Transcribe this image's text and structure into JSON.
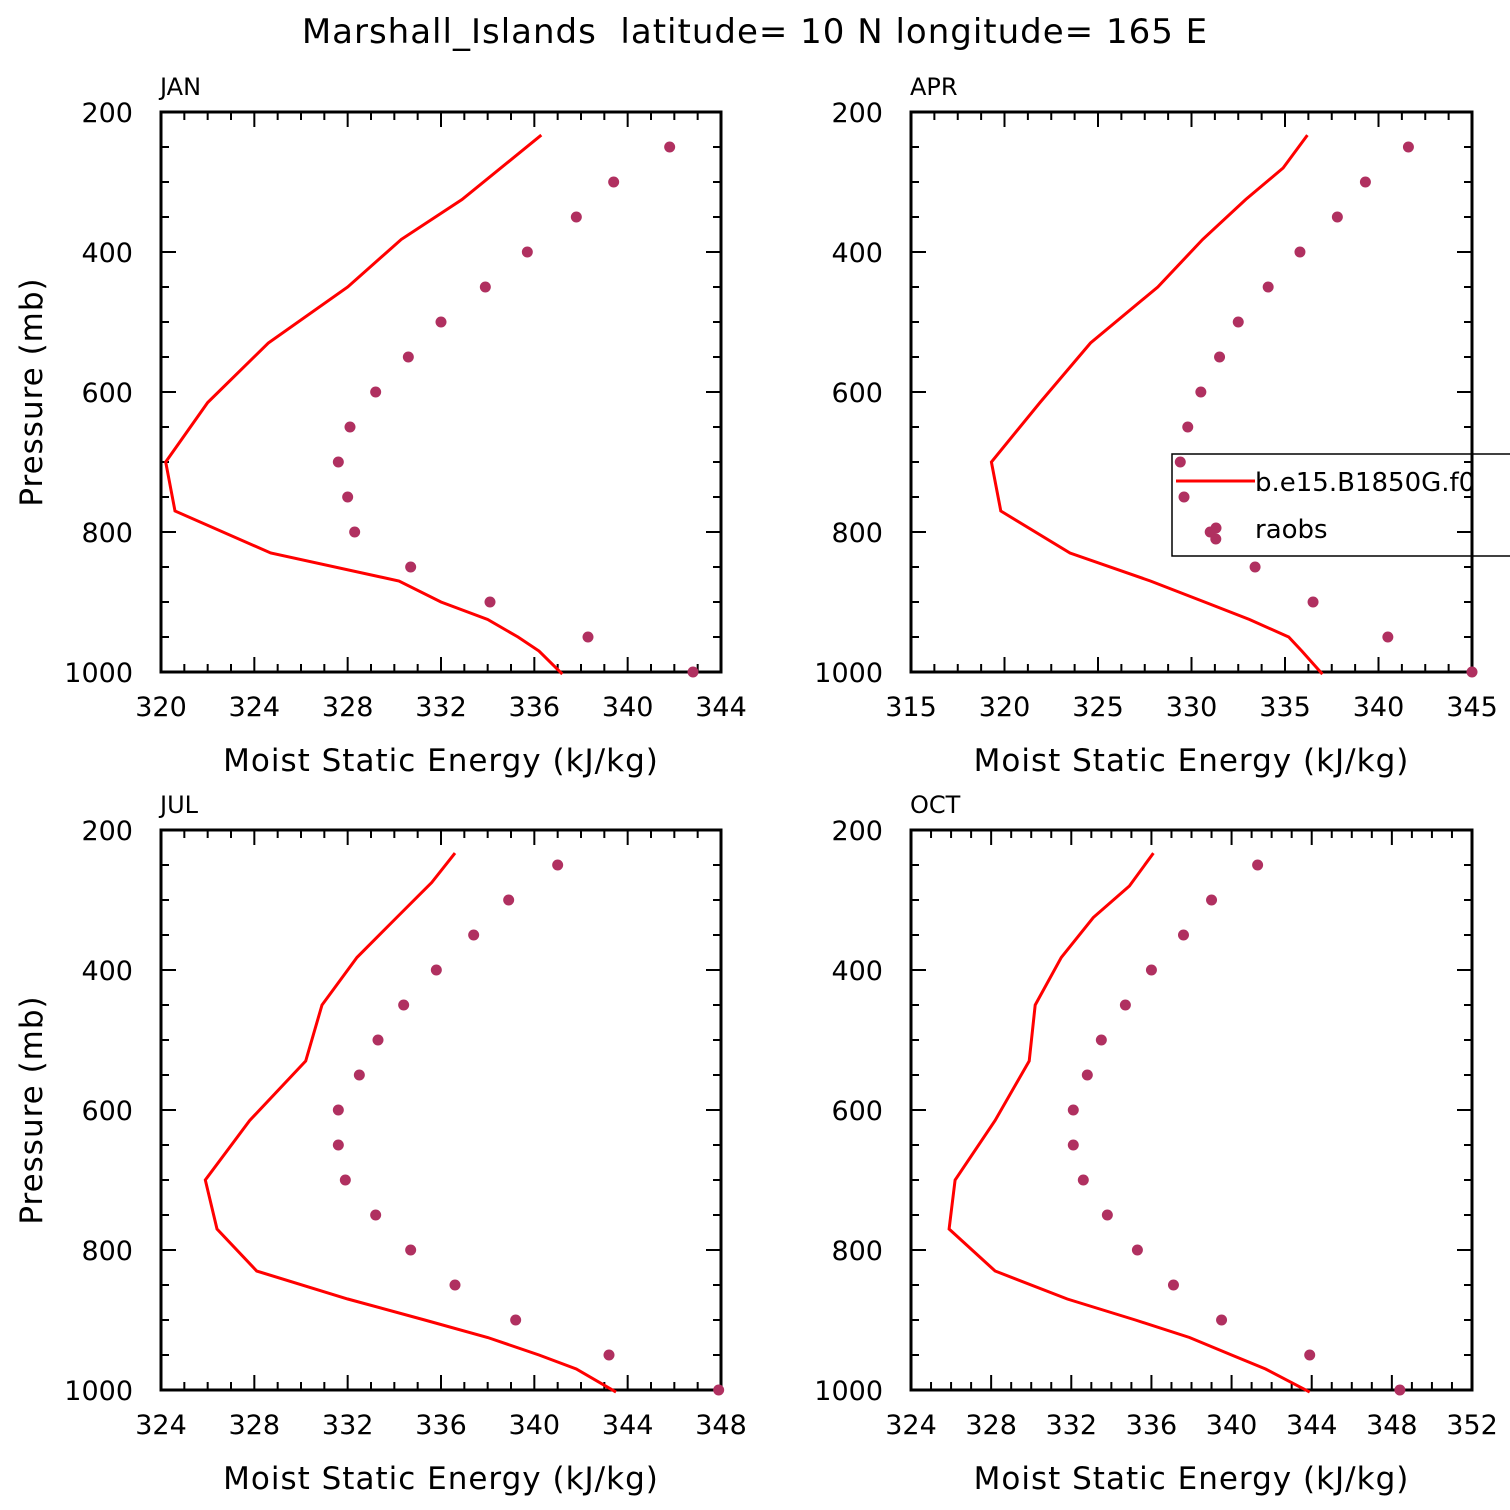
{
  "title": "Marshall_Islands  latitude= 10 N longitude= 165 E",
  "colors": {
    "model_line": "#ff0000",
    "raobs_points": "#b03060",
    "axis": "#000000"
  },
  "legend": {
    "items": [
      {
        "label": "b.e15.B1850G.f0",
        "marker": "line"
      },
      {
        "label": "raobs",
        "marker": "dot"
      }
    ]
  },
  "chart_data": [
    {
      "panel": "JAN",
      "type": "line+scatter",
      "xlabel": "Moist Static Energy (kJ/kg)",
      "ylabel": "Pressure (mb)",
      "xlim": [
        320,
        344
      ],
      "xticks": [
        320,
        324,
        328,
        332,
        336,
        340,
        344
      ],
      "ylim": [
        200,
        1000
      ],
      "yticks": [
        200,
        400,
        600,
        800,
        1000
      ],
      "series": [
        {
          "name": "b.e15.B1850G.f0",
          "kind": "line",
          "points": [
            [
              336.3,
              233
            ],
            [
              332.9,
              325
            ],
            [
              330.3,
              382
            ],
            [
              328.0,
              450
            ],
            [
              324.6,
              530
            ],
            [
              322.0,
              615
            ],
            [
              320.2,
              700
            ],
            [
              320.6,
              770
            ],
            [
              324.7,
              830
            ],
            [
              330.2,
              870
            ],
            [
              332.0,
              900
            ],
            [
              334.0,
              925
            ],
            [
              335.3,
              950
            ],
            [
              336.2,
              970
            ],
            [
              337.2,
              1003
            ]
          ]
        },
        {
          "name": "raobs",
          "kind": "scatter",
          "points": [
            [
              341.8,
              250
            ],
            [
              339.4,
              300
            ],
            [
              337.8,
              350
            ],
            [
              335.7,
              400
            ],
            [
              333.9,
              450
            ],
            [
              332.0,
              500
            ],
            [
              330.6,
              550
            ],
            [
              329.2,
              600
            ],
            [
              328.1,
              650
            ],
            [
              327.6,
              700
            ],
            [
              328.0,
              750
            ],
            [
              328.3,
              800
            ],
            [
              330.7,
              850
            ],
            [
              334.1,
              900
            ],
            [
              338.3,
              950
            ],
            [
              342.8,
              1000
            ]
          ]
        }
      ]
    },
    {
      "panel": "APR",
      "type": "line+scatter",
      "xlabel": "Moist Static Energy (kJ/kg)",
      "ylabel": "",
      "xlim": [
        315,
        345
      ],
      "xticks": [
        315,
        320,
        325,
        330,
        335,
        340,
        345
      ],
      "ylim": [
        200,
        1000
      ],
      "yticks": [
        200,
        400,
        600,
        800,
        1000
      ],
      "series": [
        {
          "name": "b.e15.B1850G.f0",
          "kind": "line",
          "points": [
            [
              336.2,
              233
            ],
            [
              334.9,
              280
            ],
            [
              332.9,
              325
            ],
            [
              330.6,
              382
            ],
            [
              328.2,
              450
            ],
            [
              324.6,
              530
            ],
            [
              321.9,
              615
            ],
            [
              319.3,
              700
            ],
            [
              319.8,
              770
            ],
            [
              323.5,
              830
            ],
            [
              327.8,
              870
            ],
            [
              330.7,
              900
            ],
            [
              333.1,
              925
            ],
            [
              335.2,
              950
            ],
            [
              335.9,
              970
            ],
            [
              337.0,
              1003
            ]
          ]
        },
        {
          "name": "raobs",
          "kind": "scatter",
          "points": [
            [
              341.6,
              250
            ],
            [
              339.3,
              300
            ],
            [
              337.8,
              350
            ],
            [
              335.8,
              400
            ],
            [
              334.1,
              450
            ],
            [
              332.5,
              500
            ],
            [
              331.5,
              550
            ],
            [
              330.5,
              600
            ],
            [
              329.8,
              650
            ],
            [
              329.4,
              700
            ],
            [
              329.6,
              750
            ],
            [
              331.0,
              800
            ],
            [
              331.3,
              810
            ],
            [
              333.4,
              850
            ],
            [
              336.5,
              900
            ],
            [
              340.5,
              950
            ],
            [
              345.0,
              1000
            ]
          ]
        }
      ]
    },
    {
      "panel": "JUL",
      "type": "line+scatter",
      "xlabel": "Moist Static Energy (kJ/kg)",
      "ylabel": "Pressure (mb)",
      "xlim": [
        324,
        348
      ],
      "xticks": [
        324,
        328,
        332,
        336,
        340,
        344,
        348
      ],
      "ylim": [
        200,
        1000
      ],
      "yticks": [
        200,
        400,
        600,
        800,
        1000
      ],
      "series": [
        {
          "name": "b.e15.B1850G.f0",
          "kind": "line",
          "points": [
            [
              336.6,
              233
            ],
            [
              335.6,
              275
            ],
            [
              334.1,
              325
            ],
            [
              332.4,
              382
            ],
            [
              330.9,
              450
            ],
            [
              330.2,
              530
            ],
            [
              327.8,
              615
            ],
            [
              325.9,
              700
            ],
            [
              326.4,
              770
            ],
            [
              328.1,
              830
            ],
            [
              332.0,
              870
            ],
            [
              335.3,
              900
            ],
            [
              338.0,
              925
            ],
            [
              340.2,
              950
            ],
            [
              341.8,
              970
            ],
            [
              343.5,
              1003
            ]
          ]
        },
        {
          "name": "raobs",
          "kind": "scatter",
          "points": [
            [
              341.0,
              250
            ],
            [
              338.9,
              300
            ],
            [
              337.4,
              350
            ],
            [
              335.8,
              400
            ],
            [
              334.4,
              450
            ],
            [
              333.3,
              500
            ],
            [
              332.5,
              550
            ],
            [
              331.6,
              600
            ],
            [
              331.6,
              650
            ],
            [
              331.9,
              700
            ],
            [
              333.2,
              750
            ],
            [
              334.7,
              800
            ],
            [
              336.6,
              850
            ],
            [
              339.2,
              900
            ],
            [
              343.2,
              950
            ],
            [
              347.9,
              1000
            ]
          ]
        }
      ]
    },
    {
      "panel": "OCT",
      "type": "line+scatter",
      "xlabel": "Moist Static Energy (kJ/kg)",
      "ylabel": "",
      "xlim": [
        324,
        352
      ],
      "xticks": [
        324,
        328,
        332,
        336,
        340,
        344,
        348,
        352
      ],
      "ylim": [
        200,
        1000
      ],
      "yticks": [
        200,
        400,
        600,
        800,
        1000
      ],
      "series": [
        {
          "name": "b.e15.B1850G.f0",
          "kind": "line",
          "points": [
            [
              336.1,
              233
            ],
            [
              334.9,
              280
            ],
            [
              333.1,
              325
            ],
            [
              331.5,
              382
            ],
            [
              330.2,
              450
            ],
            [
              329.9,
              530
            ],
            [
              328.2,
              615
            ],
            [
              326.2,
              700
            ],
            [
              325.9,
              770
            ],
            [
              328.2,
              830
            ],
            [
              331.8,
              870
            ],
            [
              335.2,
              900
            ],
            [
              337.9,
              925
            ],
            [
              340.0,
              950
            ],
            [
              341.7,
              970
            ],
            [
              343.9,
              1003
            ]
          ]
        },
        {
          "name": "raobs",
          "kind": "scatter",
          "points": [
            [
              341.3,
              250
            ],
            [
              339.0,
              300
            ],
            [
              337.6,
              350
            ],
            [
              336.0,
              400
            ],
            [
              334.7,
              450
            ],
            [
              333.5,
              500
            ],
            [
              332.8,
              550
            ],
            [
              332.1,
              600
            ],
            [
              332.1,
              650
            ],
            [
              332.6,
              700
            ],
            [
              333.8,
              750
            ],
            [
              335.3,
              800
            ],
            [
              337.1,
              850
            ],
            [
              339.5,
              900
            ],
            [
              343.9,
              950
            ],
            [
              348.4,
              1000
            ]
          ]
        }
      ]
    }
  ]
}
